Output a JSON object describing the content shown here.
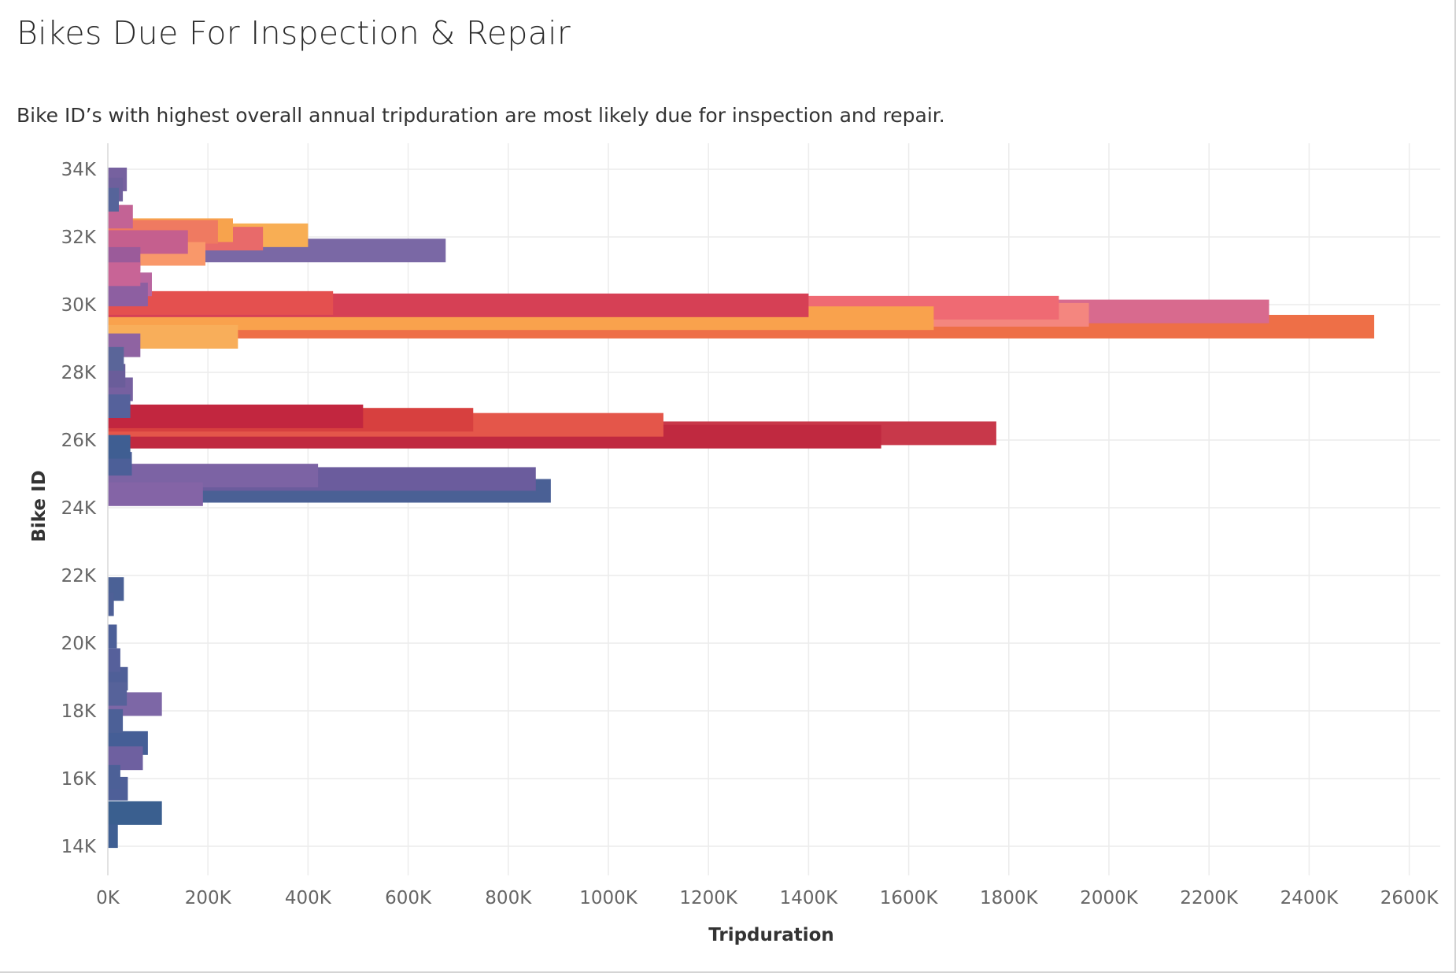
{
  "title": "Bikes Due For Inspection & Repair",
  "subtitle": "Bike ID’s with highest overall annual tripduration are most likely due for inspection and repair.",
  "chart_data": {
    "type": "bar",
    "orientation": "horizontal",
    "title": "Bikes Due For Inspection & Repair",
    "subtitle": "Bike ID’s with highest overall annual tripduration are most likely due for inspection and repair.",
    "xlabel": "Tripduration",
    "ylabel": "Bike ID",
    "xlim": [
      0,
      2700000
    ],
    "ylim": [
      13700,
      34300
    ],
    "grid": true,
    "x_ticks": [
      0,
      200000,
      400000,
      600000,
      800000,
      1000000,
      1200000,
      1400000,
      1600000,
      1800000,
      2000000,
      2200000,
      2400000,
      2600000
    ],
    "x_tick_labels": [
      "0K",
      "200K",
      "400K",
      "600K",
      "800K",
      "1000K",
      "1200K",
      "1400K",
      "1600K",
      "1800K",
      "2000K",
      "2200K",
      "2400K",
      "2600K"
    ],
    "y_ticks": [
      14000,
      16000,
      18000,
      20000,
      22000,
      24000,
      26000,
      28000,
      30000,
      32000,
      34000
    ],
    "y_tick_labels": [
      "14K",
      "16K",
      "18K",
      "20K",
      "22K",
      "24K",
      "26K",
      "28K",
      "30K",
      "32K",
      "34K"
    ],
    "bars": [
      {
        "bike_id": 33700,
        "tripduration": 38000,
        "color": "#76619f"
      },
      {
        "bike_id": 33400,
        "tripduration": 30000,
        "color": "#6e5f9c"
      },
      {
        "bike_id": 33100,
        "tripduration": 22000,
        "color": "#56649a"
      },
      {
        "bike_id": 32600,
        "tripduration": 50000,
        "color": "#c36395"
      },
      {
        "bike_id": 32200,
        "tripduration": 250000,
        "color": "#f7a34d"
      },
      {
        "bike_id": 32150,
        "tripduration": 220000,
        "color": "#ef7a61"
      },
      {
        "bike_id": 32050,
        "tripduration": 400000,
        "color": "#f8ae54"
      },
      {
        "bike_id": 31950,
        "tripduration": 310000,
        "color": "#e86a6a"
      },
      {
        "bike_id": 31850,
        "tripduration": 160000,
        "color": "#c55f8e"
      },
      {
        "bike_id": 31600,
        "tripduration": 675000,
        "color": "#7a68a5"
      },
      {
        "bike_id": 31500,
        "tripduration": 195000,
        "color": "#f9986a"
      },
      {
        "bike_id": 31350,
        "tripduration": 65000,
        "color": "#9b5b9a"
      },
      {
        "bike_id": 30900,
        "tripduration": 65000,
        "color": "#c86496"
      },
      {
        "bike_id": 30600,
        "tripduration": 88000,
        "color": "#b966a0"
      },
      {
        "bike_id": 30300,
        "tripduration": 80000,
        "color": "#8d5fa1"
      },
      {
        "bike_id": 30050,
        "tripduration": 450000,
        "color": "#e4504f"
      },
      {
        "bike_id": 29980,
        "tripduration": 1400000,
        "color": "#d64055"
      },
      {
        "bike_id": 29910,
        "tripduration": 1900000,
        "color": "#ef6a73"
      },
      {
        "bike_id": 29800,
        "tripduration": 2320000,
        "color": "#d86a8e"
      },
      {
        "bike_id": 29700,
        "tripduration": 1960000,
        "color": "#f4867f"
      },
      {
        "bike_id": 29600,
        "tripduration": 1650000,
        "color": "#f9a24d"
      },
      {
        "bike_id": 29350,
        "tripduration": 2530000,
        "color": "#ee6f47"
      },
      {
        "bike_id": 29050,
        "tripduration": 260000,
        "color": "#f8ae5a"
      },
      {
        "bike_id": 28800,
        "tripduration": 65000,
        "color": "#8f63a2"
      },
      {
        "bike_id": 28400,
        "tripduration": 32000,
        "color": "#5a6599"
      },
      {
        "bike_id": 27900,
        "tripduration": 35000,
        "color": "#6a5d9a"
      },
      {
        "bike_id": 27500,
        "tripduration": 50000,
        "color": "#7660a0"
      },
      {
        "bike_id": 27000,
        "tripduration": 45000,
        "color": "#55619b"
      },
      {
        "bike_id": 26700,
        "tripduration": 510000,
        "color": "#c2263f"
      },
      {
        "bike_id": 26600,
        "tripduration": 730000,
        "color": "#d7403f"
      },
      {
        "bike_id": 26450,
        "tripduration": 1110000,
        "color": "#e4564a"
      },
      {
        "bike_id": 26200,
        "tripduration": 1775000,
        "color": "#c8384a"
      },
      {
        "bike_id": 26100,
        "tripduration": 1545000,
        "color": "#c02940"
      },
      {
        "bike_id": 25800,
        "tripduration": 45000,
        "color": "#3f5e92"
      },
      {
        "bike_id": 25300,
        "tripduration": 48000,
        "color": "#4c5f98"
      },
      {
        "bike_id": 24950,
        "tripduration": 420000,
        "color": "#7c63a4"
      },
      {
        "bike_id": 24850,
        "tripduration": 855000,
        "color": "#6b5c9d"
      },
      {
        "bike_id": 24500,
        "tripduration": 885000,
        "color": "#4a6095"
      },
      {
        "bike_id": 24400,
        "tripduration": 190000,
        "color": "#8464a6"
      },
      {
        "bike_id": 21600,
        "tripduration": 32000,
        "color": "#4b6196"
      },
      {
        "bike_id": 21150,
        "tripduration": 12000,
        "color": "#4e6097"
      },
      {
        "bike_id": 20200,
        "tripduration": 18000,
        "color": "#4c5f98"
      },
      {
        "bike_id": 19500,
        "tripduration": 25000,
        "color": "#56609b"
      },
      {
        "bike_id": 18950,
        "tripduration": 40000,
        "color": "#4f5f98"
      },
      {
        "bike_id": 18500,
        "tripduration": 38000,
        "color": "#56629a"
      },
      {
        "bike_id": 18200,
        "tripduration": 108000,
        "color": "#7d67a6"
      },
      {
        "bike_id": 17700,
        "tripduration": 30000,
        "color": "#4c6097"
      },
      {
        "bike_id": 17050,
        "tripduration": 80000,
        "color": "#455e96"
      },
      {
        "bike_id": 16600,
        "tripduration": 70000,
        "color": "#6e60a0"
      },
      {
        "bike_id": 16050,
        "tripduration": 25000,
        "color": "#4c6097"
      },
      {
        "bike_id": 15700,
        "tripduration": 40000,
        "color": "#4e5f98"
      },
      {
        "bike_id": 14980,
        "tripduration": 108000,
        "color": "#3a5f8f"
      },
      {
        "bike_id": 14300,
        "tripduration": 20000,
        "color": "#3f5f93"
      }
    ]
  }
}
